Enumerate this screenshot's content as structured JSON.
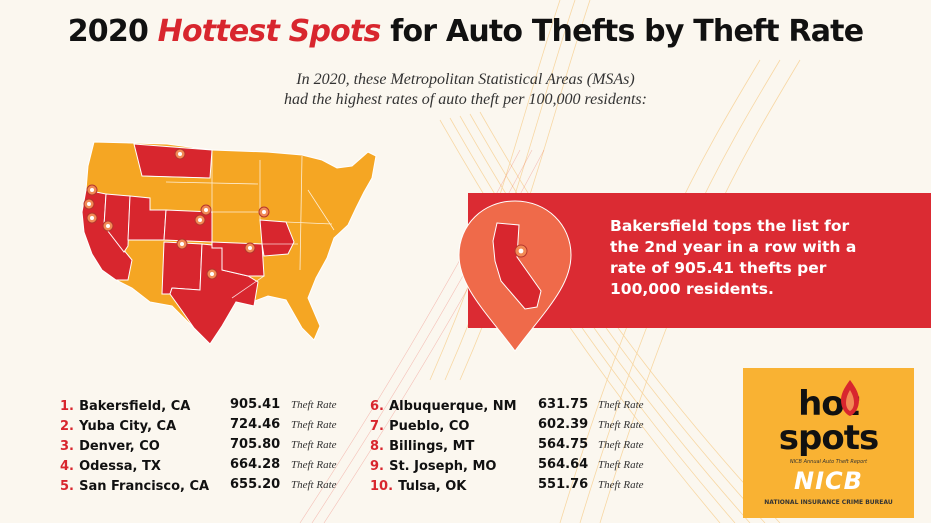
{
  "title": {
    "year": "2020",
    "highlight": "Hottest Spots",
    "rest": "for Auto Thefts by Theft Rate"
  },
  "subtitle": {
    "line1": "In 2020, these Metropolitan Statistical Areas (MSAs)",
    "line2": "had the highest rates of auto theft per 100,000 residents:"
  },
  "callout": {
    "line1": "Bakersfield tops the list for",
    "line2": "the 2nd year in a row with a",
    "line3": "rate of 905.41 thefts per",
    "line4": "100,000 residents."
  },
  "rankings": [
    {
      "rank": "1.",
      "city": "Bakersfield, CA",
      "value": "905.41",
      "label": "Theft Rate"
    },
    {
      "rank": "2.",
      "city": "Yuba City, CA",
      "value": "724.46",
      "label": "Theft Rate"
    },
    {
      "rank": "3.",
      "city": "Denver, CO",
      "value": "705.80",
      "label": "Theft Rate"
    },
    {
      "rank": "4.",
      "city": "Odessa, TX",
      "value": "664.28",
      "label": "Theft Rate"
    },
    {
      "rank": "5.",
      "city": "San Francisco, CA",
      "value": "655.20",
      "label": "Theft Rate"
    },
    {
      "rank": "6.",
      "city": "Albuquerque, NM",
      "value": "631.75",
      "label": "Theft Rate"
    },
    {
      "rank": "7.",
      "city": "Pueblo, CO",
      "value": "602.39",
      "label": "Theft Rate"
    },
    {
      "rank": "8.",
      "city": "Billings, MT",
      "value": "564.75",
      "label": "Theft Rate"
    },
    {
      "rank": "9.",
      "city": "St. Joseph, MO",
      "value": "564.64",
      "label": "Theft Rate"
    },
    {
      "rank": "10.",
      "city": "Tulsa, OK",
      "value": "551.76",
      "label": "Theft Rate"
    }
  ],
  "logo": {
    "hot": "hot",
    "spots": "spots",
    "tagline": "NICB Annual Auto Theft Report",
    "brand": "NICB",
    "brand_full": "NATIONAL INSURANCE CRIME BUREAU"
  },
  "colors": {
    "accent_red": "#d8262e",
    "map_orange": "#f5a623",
    "logo_bg": "#f9b233"
  },
  "icons": [
    "location-pin-icon",
    "flame-icon"
  ]
}
